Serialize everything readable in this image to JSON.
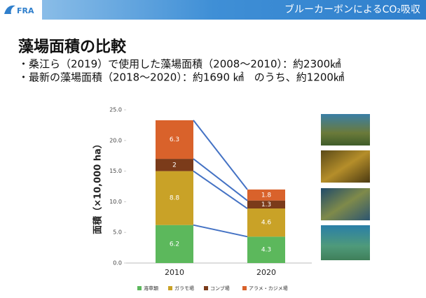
{
  "header": {
    "logo": "FRA",
    "title": "ブルーカーボンによるCO₂吸収"
  },
  "slide": {
    "title": "藻場面積の比較",
    "bullets": [
      "・桑江ら（2019）で使用した藻場面積（2008～2010）：約2300㎢",
      "・最新の藻場面積（2018～2020）：約1690 ㎢　のうち、約1200㎢"
    ]
  },
  "chart_data": {
    "type": "stacked_bar",
    "y_label": "面積（×10,000 ha）",
    "categories": [
      "2010",
      "2020"
    ],
    "series": [
      {
        "name": "海草類",
        "color": "#5cb85c",
        "values": [
          6.2,
          4.3
        ]
      },
      {
        "name": "ガラモ場",
        "color": "#c9a227",
        "values": [
          8.8,
          4.6
        ]
      },
      {
        "name": "コンブ場",
        "color": "#7b3b1a",
        "values": [
          2.0,
          1.3
        ]
      },
      {
        "name": "アラメ・カジメ場",
        "color": "#d9622b",
        "values": [
          6.3,
          1.8
        ]
      }
    ],
    "ylim": [
      0,
      25
    ],
    "yticks": [
      {
        "value": 0,
        "label": "0.0"
      },
      {
        "value": 5,
        "label": "5.0"
      },
      {
        "value": 10,
        "label": "10.0"
      },
      {
        "value": 15,
        "label": "15.0"
      },
      {
        "value": 20,
        "label": "20.0"
      },
      {
        "value": 25,
        "label": "25.0"
      }
    ],
    "connector_color": "#4472c4",
    "legend": "bottom"
  }
}
